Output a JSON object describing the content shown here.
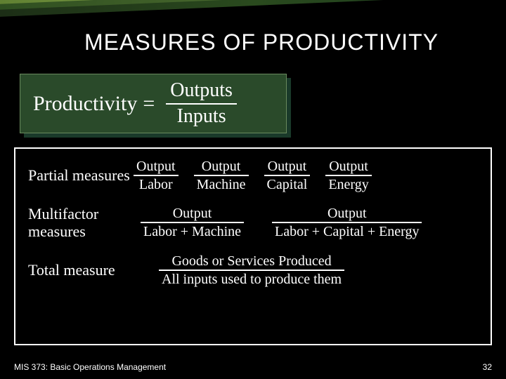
{
  "title": "MEASURES OF PRODUCTIVITY",
  "formula": {
    "lhs": "Productivity",
    "eq": "=",
    "numerator": "Outputs",
    "denominator": "Inputs"
  },
  "colors": {
    "background": "#000000",
    "text": "#ffffff",
    "box_fill": "#2a4a2a",
    "box_border": "#6a8a5e",
    "box_shadow": "#1a3a2a",
    "stripe_colors": [
      "#5a7a2e",
      "#2a4a1e",
      "#1a2a15"
    ]
  },
  "typography": {
    "title_fontsize": 32,
    "title_font": "Arial",
    "formula_fontsize": 30,
    "body_font": "Georgia/Times",
    "label_fontsize": 22,
    "fraction_fontsize": 20,
    "footer_fontsize": 12
  },
  "measures": {
    "partial": {
      "label": "Partial measures",
      "fractions": [
        {
          "num": "Output",
          "den": "Labor"
        },
        {
          "num": "Output",
          "den": "Machine"
        },
        {
          "num": "Output",
          "den": "Capital"
        },
        {
          "num": "Output",
          "den": "Energy"
        }
      ]
    },
    "multifactor": {
      "label": "Multifactor measures",
      "fractions": [
        {
          "num": "Output",
          "den": "Labor + Machine"
        },
        {
          "num": "Output",
          "den": "Labor + Capital + Energy"
        }
      ]
    },
    "total": {
      "label": "Total measure",
      "fractions": [
        {
          "num": "Goods or Services Produced",
          "den": "All inputs used to produce them"
        }
      ]
    }
  },
  "footer": {
    "left": "MIS 373: Basic Operations Management",
    "page": "32"
  }
}
